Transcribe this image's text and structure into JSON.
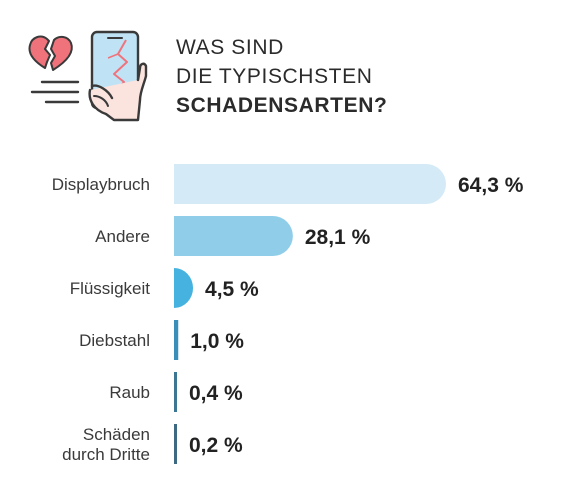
{
  "header": {
    "title_lines": [
      "WAS SIND",
      "DIE TYPISCHSTEN",
      "SCHADENSARTEN?"
    ],
    "icon": "broken-heart-cracked-phone-icon"
  },
  "chart_data": {
    "type": "bar",
    "orientation": "horizontal",
    "title": "WAS SIND DIE TYPISCHSTEN SCHADENSARTEN?",
    "xlabel": "",
    "ylabel": "",
    "grid": false,
    "unit": "%",
    "categories": [
      "Displaybruch",
      "Andere",
      "Flüssigkeit",
      "Diebstahl",
      "Raub",
      "Schäden durch Dritte"
    ],
    "category_lines": [
      [
        "Displaybruch"
      ],
      [
        "Andere"
      ],
      [
        "Flüssigkeit"
      ],
      [
        "Diebstahl"
      ],
      [
        "Raub"
      ],
      [
        "Schäden",
        "durch Dritte"
      ]
    ],
    "values": [
      64.3,
      28.1,
      4.5,
      1.0,
      0.4,
      0.2
    ],
    "value_labels": [
      "64,3 %",
      "28,1 %",
      "4,5 %",
      "1,0 %",
      "0,4 %",
      "0,2 %"
    ],
    "colors": [
      "#d4eaf6",
      "#8fcde9",
      "#45b2e0",
      "#3a8fb8",
      "#3d7693",
      "#3d6a82"
    ],
    "xlim": [
      0,
      64.3
    ]
  },
  "colors": {
    "icon_red": "#f0737c",
    "icon_dark": "#4a4a4a",
    "skin": "#fbe3de",
    "phone_screen": "#bfe3f5"
  }
}
